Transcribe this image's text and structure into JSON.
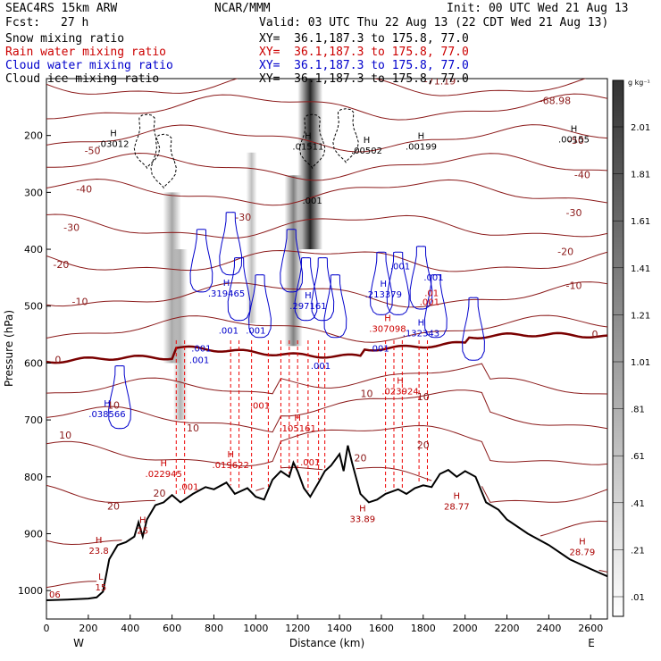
{
  "header": {
    "model": "SEAC4RS 15km ARW",
    "org": "NCAR/MMM",
    "init": "Init: 00 UTC Wed 21 Aug 13",
    "fcst_label": "Fcst:",
    "fcst_value": "27 h",
    "valid": "Valid: 03 UTC Thu 22 Aug 13 (22 CDT Wed 21 Aug 13)"
  },
  "legend": [
    {
      "label": "Snow mixing ratio",
      "xy": "XY=  36.1,187.3 to 175.8, 77.0",
      "color": "#000000"
    },
    {
      "label": "Rain water mixing ratio",
      "xy": "XY=  36.1,187.3 to 175.8, 77.0",
      "color": "#cc0000"
    },
    {
      "label": "Cloud water mixing ratio",
      "xy": "XY=  36.1,187.3 to 175.8, 77.0",
      "color": "#0000cc"
    },
    {
      "label": "Cloud ice mixing ratio",
      "xy": "XY=  36.1,187.3 to 175.8, 77.0",
      "color": "#000000"
    }
  ],
  "colors": {
    "temperature": "#8b1a1a",
    "freezing_level": "#7a0000",
    "rain": "#ee0000",
    "cloud_water": "#0000cc",
    "terrain": "#000000"
  },
  "chart_data": {
    "type": "cross-section",
    "xlabel": "Distance (km)",
    "ylabel": "Pressure (hPa)",
    "xlim": [
      0,
      2680
    ],
    "ylim": [
      1050,
      100
    ],
    "x_ticks": [
      "0",
      "200",
      "400",
      "600",
      "800",
      "1000",
      "1200",
      "1400",
      "1600",
      "1800",
      "2000",
      "2200",
      "2400",
      "2600"
    ],
    "y_ticks": [
      "200",
      "300",
      "400",
      "500",
      "600",
      "700",
      "800",
      "900",
      "1000"
    ],
    "x_end_labels": {
      "left": "W",
      "right": "E"
    },
    "colorbar": {
      "unit": "g kg⁻¹",
      "labels": [
        "2.01",
        "1.81",
        "1.61",
        "1.41",
        "1.21",
        "1.01",
        ".81",
        ".61",
        ".41",
        ".21",
        ".01"
      ]
    },
    "terrain": [
      [
        0,
        1017
      ],
      [
        100,
        1016
      ],
      [
        200,
        1014
      ],
      [
        240,
        1012
      ],
      [
        270,
        1002
      ],
      [
        300,
        945
      ],
      [
        340,
        920
      ],
      [
        380,
        915
      ],
      [
        420,
        905
      ],
      [
        440,
        880
      ],
      [
        460,
        905
      ],
      [
        480,
        875
      ],
      [
        520,
        850
      ],
      [
        560,
        845
      ],
      [
        600,
        832
      ],
      [
        640,
        845
      ],
      [
        700,
        830
      ],
      [
        760,
        818
      ],
      [
        800,
        822
      ],
      [
        860,
        810
      ],
      [
        900,
        830
      ],
      [
        960,
        820
      ],
      [
        1000,
        835
      ],
      [
        1040,
        840
      ],
      [
        1080,
        805
      ],
      [
        1120,
        790
      ],
      [
        1160,
        800
      ],
      [
        1180,
        775
      ],
      [
        1200,
        790
      ],
      [
        1230,
        820
      ],
      [
        1260,
        835
      ],
      [
        1300,
        810
      ],
      [
        1330,
        790
      ],
      [
        1360,
        780
      ],
      [
        1400,
        760
      ],
      [
        1420,
        790
      ],
      [
        1440,
        745
      ],
      [
        1460,
        775
      ],
      [
        1500,
        830
      ],
      [
        1540,
        845
      ],
      [
        1580,
        840
      ],
      [
        1620,
        830
      ],
      [
        1680,
        822
      ],
      [
        1720,
        830
      ],
      [
        1760,
        820
      ],
      [
        1800,
        815
      ],
      [
        1840,
        818
      ],
      [
        1880,
        795
      ],
      [
        1920,
        788
      ],
      [
        1960,
        800
      ],
      [
        2000,
        790
      ],
      [
        2050,
        800
      ],
      [
        2100,
        845
      ],
      [
        2160,
        858
      ],
      [
        2200,
        875
      ],
      [
        2300,
        900
      ],
      [
        2400,
        920
      ],
      [
        2500,
        945
      ],
      [
        2600,
        962
      ],
      [
        2680,
        975
      ]
    ],
    "freezing_level_label": "0",
    "temperature_labels": [
      {
        "t": "-71.19",
        "x": 1880,
        "p": 110
      },
      {
        "t": "-68.98",
        "x": 2430,
        "p": 145
      },
      {
        "t": "-50",
        "x": 220,
        "p": 233
      },
      {
        "t": "-40",
        "x": 180,
        "p": 300
      },
      {
        "t": "-30",
        "x": 120,
        "p": 368
      },
      {
        "t": "-20",
        "x": 70,
        "p": 433
      },
      {
        "t": "-10",
        "x": 160,
        "p": 498
      },
      {
        "t": "-30",
        "x": 940,
        "p": 350
      },
      {
        "t": "-50",
        "x": 2530,
        "p": 215
      },
      {
        "t": "-40",
        "x": 2560,
        "p": 275
      },
      {
        "t": "-30",
        "x": 2520,
        "p": 342
      },
      {
        "t": "-20",
        "x": 2480,
        "p": 410
      },
      {
        "t": "-10",
        "x": 2520,
        "p": 470
      },
      {
        "t": "10",
        "x": 320,
        "p": 680
      },
      {
        "t": "10",
        "x": 1530,
        "p": 660
      },
      {
        "t": "10",
        "x": 1800,
        "p": 665
      },
      {
        "t": "10",
        "x": 700,
        "p": 720
      },
      {
        "t": "20",
        "x": 320,
        "p": 858
      },
      {
        "t": "20",
        "x": 540,
        "p": 835
      },
      {
        "t": "20",
        "x": 1500,
        "p": 773
      },
      {
        "t": "20",
        "x": 1800,
        "p": 750
      },
      {
        "t": "10",
        "x": 90,
        "p": 733
      },
      {
        "t": "0",
        "x": 55,
        "p": 600
      },
      {
        "t": "0",
        "x": 2620,
        "p": 555
      }
    ],
    "extrema": [
      {
        "h": "H",
        "v": ".03012",
        "x": 320,
        "p": 220
      },
      {
        "h": "H",
        "v": ".01511",
        "x": 1250,
        "p": 225
      },
      {
        "h": "H",
        "v": ".00502",
        "x": 1530,
        "p": 232
      },
      {
        "h": "H",
        "v": ".00199",
        "x": 1790,
        "p": 225
      },
      {
        "h": "H",
        "v": ".00155",
        "x": 2520,
        "p": 212
      },
      {
        "h": "H",
        "v": ".319465",
        "x": 860,
        "p": 483
      },
      {
        "h": "H",
        "v": ".297161",
        "x": 1250,
        "p": 505
      },
      {
        "h": "H",
        "v": ".213379",
        "x": 1610,
        "p": 485
      },
      {
        "h": "H",
        "v": ".132343",
        "x": 1790,
        "p": 553
      },
      {
        "h": "H",
        "v": ".307098",
        "x": 1630,
        "p": 545
      },
      {
        "h": "H",
        "v": ".038566",
        "x": 290,
        "p": 695
      },
      {
        "h": "H",
        "v": ".023924",
        "x": 1690,
        "p": 655
      },
      {
        "h": "H",
        "v": ".105161",
        "x": 1200,
        "p": 720
      },
      {
        "h": "H",
        "v": ".022945",
        "x": 560,
        "p": 800
      },
      {
        "h": "H",
        "v": ".019622",
        "x": 880,
        "p": 785
      },
      {
        "h": "H",
        "v": "33.89",
        "x": 1510,
        "p": 880
      },
      {
        "h": "H",
        "v": "28.77",
        "x": 1960,
        "p": 858
      },
      {
        "h": "H",
        "v": "23.8",
        "x": 250,
        "p": 935
      },
      {
        "h": "H",
        "v": "28.79",
        "x": 2560,
        "p": 938
      },
      {
        "h": "H",
        "v": "25",
        "x": 460,
        "p": 900
      },
      {
        "h": "L",
        "v": "15",
        "x": 260,
        "p": 1000
      },
      {
        "h": "",
        "v": "06",
        "x": 40,
        "p": 1012
      }
    ],
    "small_labels": [
      {
        "v": ".001",
        "x": 730,
        "p": 600,
        "c": "blue"
      },
      {
        "v": ".001",
        "x": 1270,
        "p": 320,
        "c": "black"
      },
      {
        "v": ".001",
        "x": 1690,
        "p": 435,
        "c": "blue"
      },
      {
        "v": ".001",
        "x": 1850,
        "p": 455,
        "c": "blue"
      },
      {
        "v": ".001",
        "x": 870,
        "p": 548,
        "c": "blue"
      },
      {
        "v": ".001",
        "x": 1000,
        "p": 548,
        "c": "blue"
      },
      {
        "v": ".001",
        "x": 740,
        "p": 580,
        "c": "blue"
      },
      {
        "v": ".001",
        "x": 1590,
        "p": 580,
        "c": "blue"
      },
      {
        "v": ".001",
        "x": 1310,
        "p": 610,
        "c": "blue"
      },
      {
        "v": ".001",
        "x": 1020,
        "p": 680,
        "c": "red"
      },
      {
        "v": ".001",
        "x": 1260,
        "p": 780,
        "c": "red"
      },
      {
        "v": ".001",
        "x": 680,
        "p": 823,
        "c": "red"
      },
      {
        "v": ".01",
        "x": 1840,
        "p": 482,
        "c": "red"
      },
      {
        "v": ".001",
        "x": 1830,
        "p": 498,
        "c": "red"
      }
    ]
  }
}
